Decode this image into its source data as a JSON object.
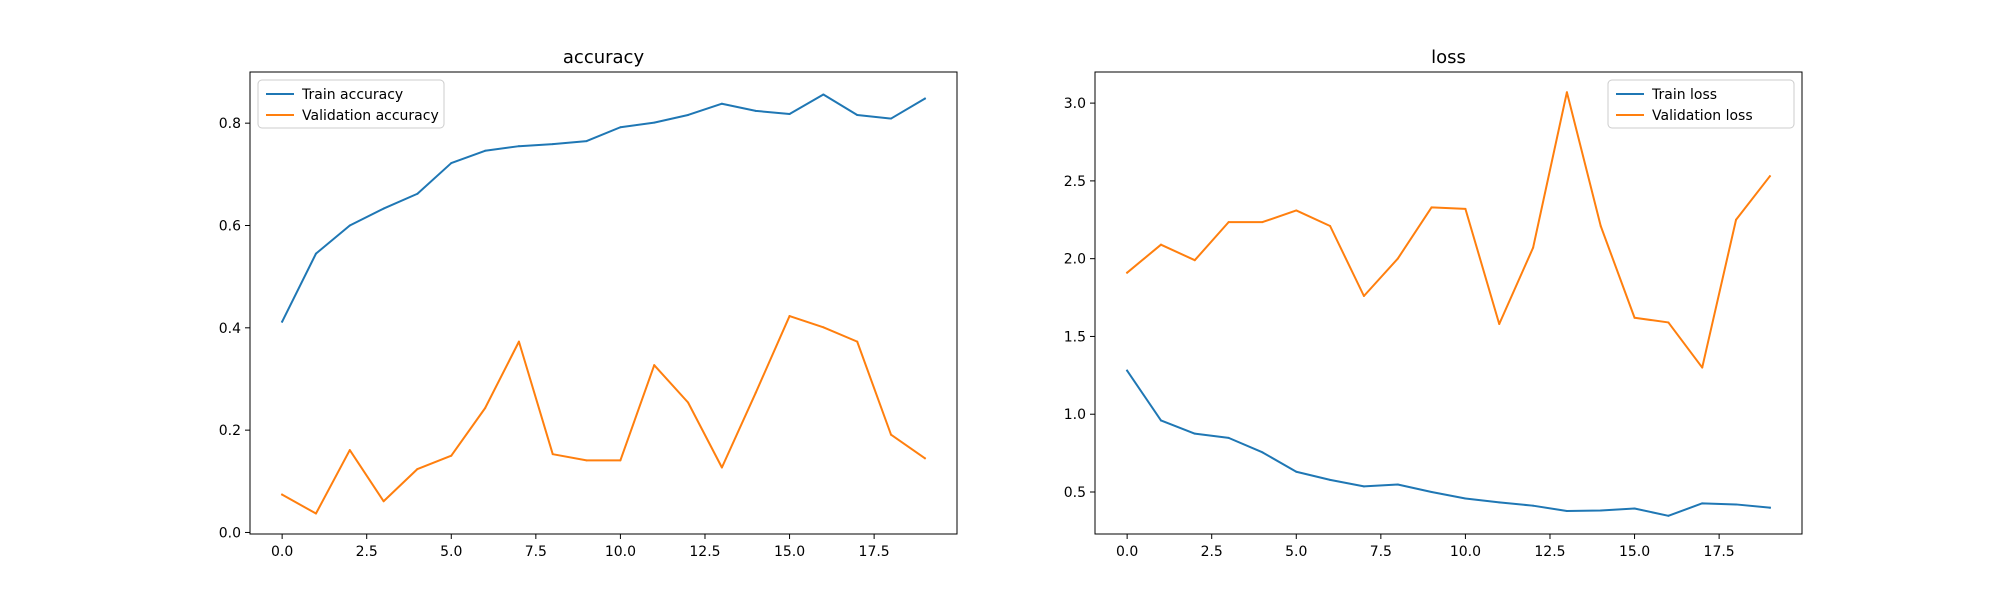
{
  "chart_data": [
    {
      "type": "line",
      "title": "accuracy",
      "xlabel": "",
      "ylabel": "",
      "x": [
        0,
        1,
        2,
        3,
        4,
        5,
        6,
        7,
        8,
        9,
        10,
        11,
        12,
        13,
        14,
        15,
        16,
        17,
        18,
        19
      ],
      "xlim": [
        -0.95,
        19.95
      ],
      "ylim": [
        -0.003,
        0.9
      ],
      "xticks": [
        0.0,
        2.5,
        5.0,
        7.5,
        10.0,
        12.5,
        15.0,
        17.5
      ],
      "xtick_labels": [
        "0.0",
        "2.5",
        "5.0",
        "7.5",
        "10.0",
        "12.5",
        "15.0",
        "17.5"
      ],
      "yticks": [
        0.0,
        0.2,
        0.4,
        0.6,
        0.8
      ],
      "ytick_labels": [
        "0.0",
        "0.2",
        "0.4",
        "0.6",
        "0.8"
      ],
      "legend_position": "upper-left",
      "grid": false,
      "series": [
        {
          "name": "Train accuracy",
          "color": "#1f77b4",
          "values": [
            0.412,
            0.545,
            0.6,
            0.633,
            0.662,
            0.722,
            0.746,
            0.755,
            0.759,
            0.765,
            0.792,
            0.801,
            0.816,
            0.838,
            0.824,
            0.818,
            0.856,
            0.816,
            0.809,
            0.848
          ]
        },
        {
          "name": "Validation accuracy",
          "color": "#ff7f0e",
          "values": [
            0.074,
            0.037,
            0.161,
            0.061,
            0.124,
            0.15,
            0.243,
            0.373,
            0.153,
            0.141,
            0.141,
            0.327,
            0.254,
            0.127,
            0.273,
            0.423,
            0.401,
            0.373,
            0.191,
            0.145
          ]
        }
      ]
    },
    {
      "type": "line",
      "title": "loss",
      "xlabel": "",
      "ylabel": "",
      "x": [
        0,
        1,
        2,
        3,
        4,
        5,
        6,
        7,
        8,
        9,
        10,
        11,
        12,
        13,
        14,
        15,
        16,
        17,
        18,
        19
      ],
      "xlim": [
        -0.95,
        19.95
      ],
      "ylim": [
        0.23,
        3.2
      ],
      "xticks": [
        0.0,
        2.5,
        5.0,
        7.5,
        10.0,
        12.5,
        15.0,
        17.5
      ],
      "xtick_labels": [
        "0.0",
        "2.5",
        "5.0",
        "7.5",
        "10.0",
        "12.5",
        "15.0",
        "17.5"
      ],
      "yticks": [
        0.5,
        1.0,
        1.5,
        2.0,
        2.5,
        3.0
      ],
      "ytick_labels": [
        "0.5",
        "1.0",
        "1.5",
        "2.0",
        "2.5",
        "3.0"
      ],
      "legend_position": "upper-right",
      "grid": false,
      "series": [
        {
          "name": "Train loss",
          "color": "#1f77b4",
          "values": [
            1.28,
            0.96,
            0.875,
            0.848,
            0.755,
            0.63,
            0.578,
            0.536,
            0.548,
            0.5,
            0.458,
            0.433,
            0.412,
            0.378,
            0.381,
            0.394,
            0.347,
            0.427,
            0.42,
            0.399
          ]
        },
        {
          "name": "Validation loss",
          "color": "#ff7f0e",
          "values": [
            1.91,
            2.09,
            1.99,
            2.235,
            2.235,
            2.31,
            2.21,
            1.76,
            2.0,
            2.33,
            2.32,
            1.58,
            2.07,
            3.07,
            2.21,
            1.62,
            1.59,
            1.3,
            2.25,
            2.53
          ]
        }
      ]
    }
  ]
}
